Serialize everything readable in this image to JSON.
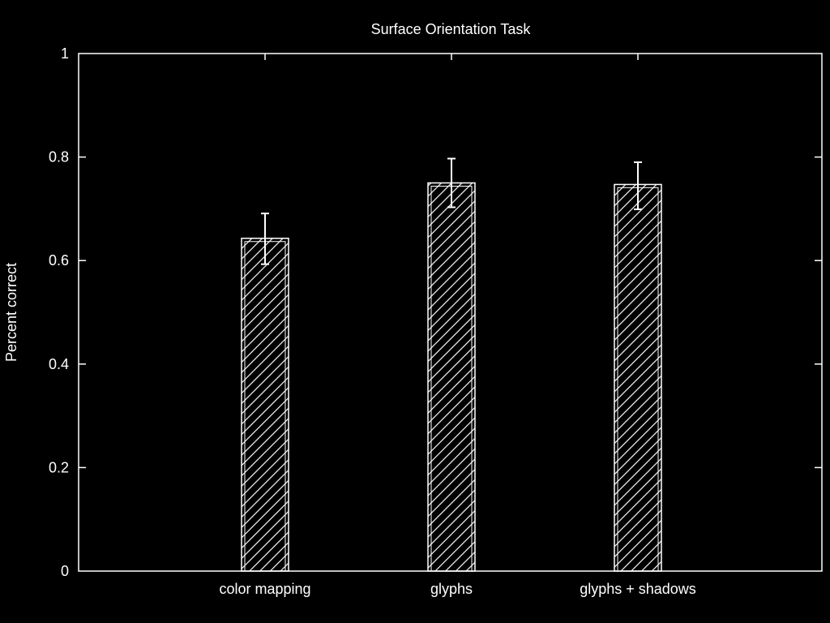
{
  "chart_data": {
    "type": "bar",
    "title": "Surface Orientation Task",
    "xlabel": "",
    "ylabel": "Percent correct",
    "categories": [
      "color mapping",
      "glyphs",
      "glyphs + shadows"
    ],
    "values": [
      0.643,
      0.75,
      0.747
    ],
    "error_low": [
      0.593,
      0.703,
      0.699
    ],
    "error_high": [
      0.691,
      0.797,
      0.79
    ],
    "ylim": [
      0,
      1
    ],
    "yticks": [
      "0",
      "0.2",
      "0.4",
      "0.6",
      "0.8",
      "1"
    ],
    "ytick_values": [
      0,
      0.2,
      0.4,
      0.6,
      0.8,
      1
    ],
    "grid": false,
    "bar_fill": "hatched",
    "colors": {
      "background": "#000000",
      "foreground": "#ffffff"
    }
  }
}
